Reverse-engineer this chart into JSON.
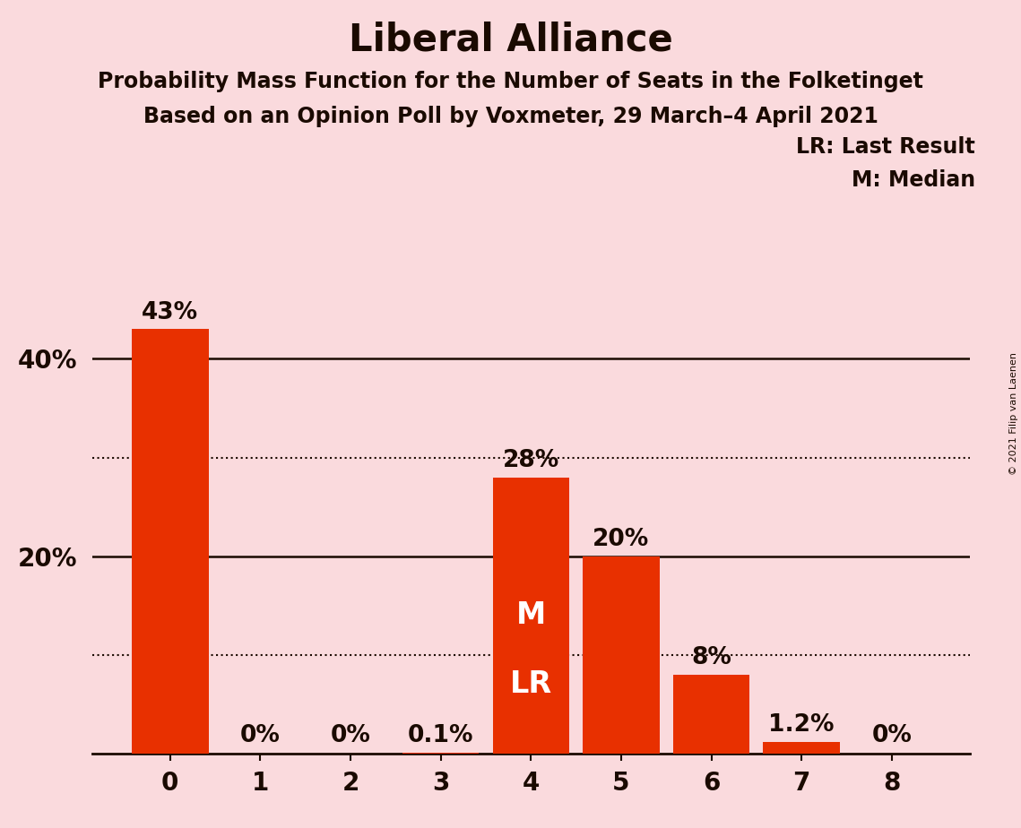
{
  "title": "Liberal Alliance",
  "subtitle1": "Probability Mass Function for the Number of Seats in the Folketinget",
  "subtitle2": "Based on an Opinion Poll by Voxmeter, 29 March–4 April 2021",
  "copyright": "© 2021 Filip van Laenen",
  "categories": [
    0,
    1,
    2,
    3,
    4,
    5,
    6,
    7,
    8
  ],
  "values": [
    43,
    0,
    0,
    0.1,
    28,
    20,
    8,
    1.2,
    0
  ],
  "bar_color": "#E83000",
  "background_color": "#FADADD",
  "label_values": [
    "43%",
    "0%",
    "0%",
    "0.1%",
    "28%",
    "20%",
    "8%",
    "1.2%",
    "0%"
  ],
  "median_bar": 4,
  "last_result_bar": 4,
  "median_label": "M",
  "last_result_label": "LR",
  "annotation_color": "#FFFFFF",
  "yticks": [
    20,
    40
  ],
  "ylim": [
    0,
    47
  ],
  "dotted_lines": [
    10,
    30
  ],
  "solid_lines": [
    20,
    40
  ],
  "legend_lr": "LR: Last Result",
  "legend_m": "M: Median",
  "title_fontsize": 30,
  "subtitle_fontsize": 17,
  "label_fontsize": 19,
  "tick_fontsize": 20,
  "legend_fontsize": 17,
  "text_color": "#1a0a00",
  "m_fontsize": 24,
  "lr_fontsize": 24
}
